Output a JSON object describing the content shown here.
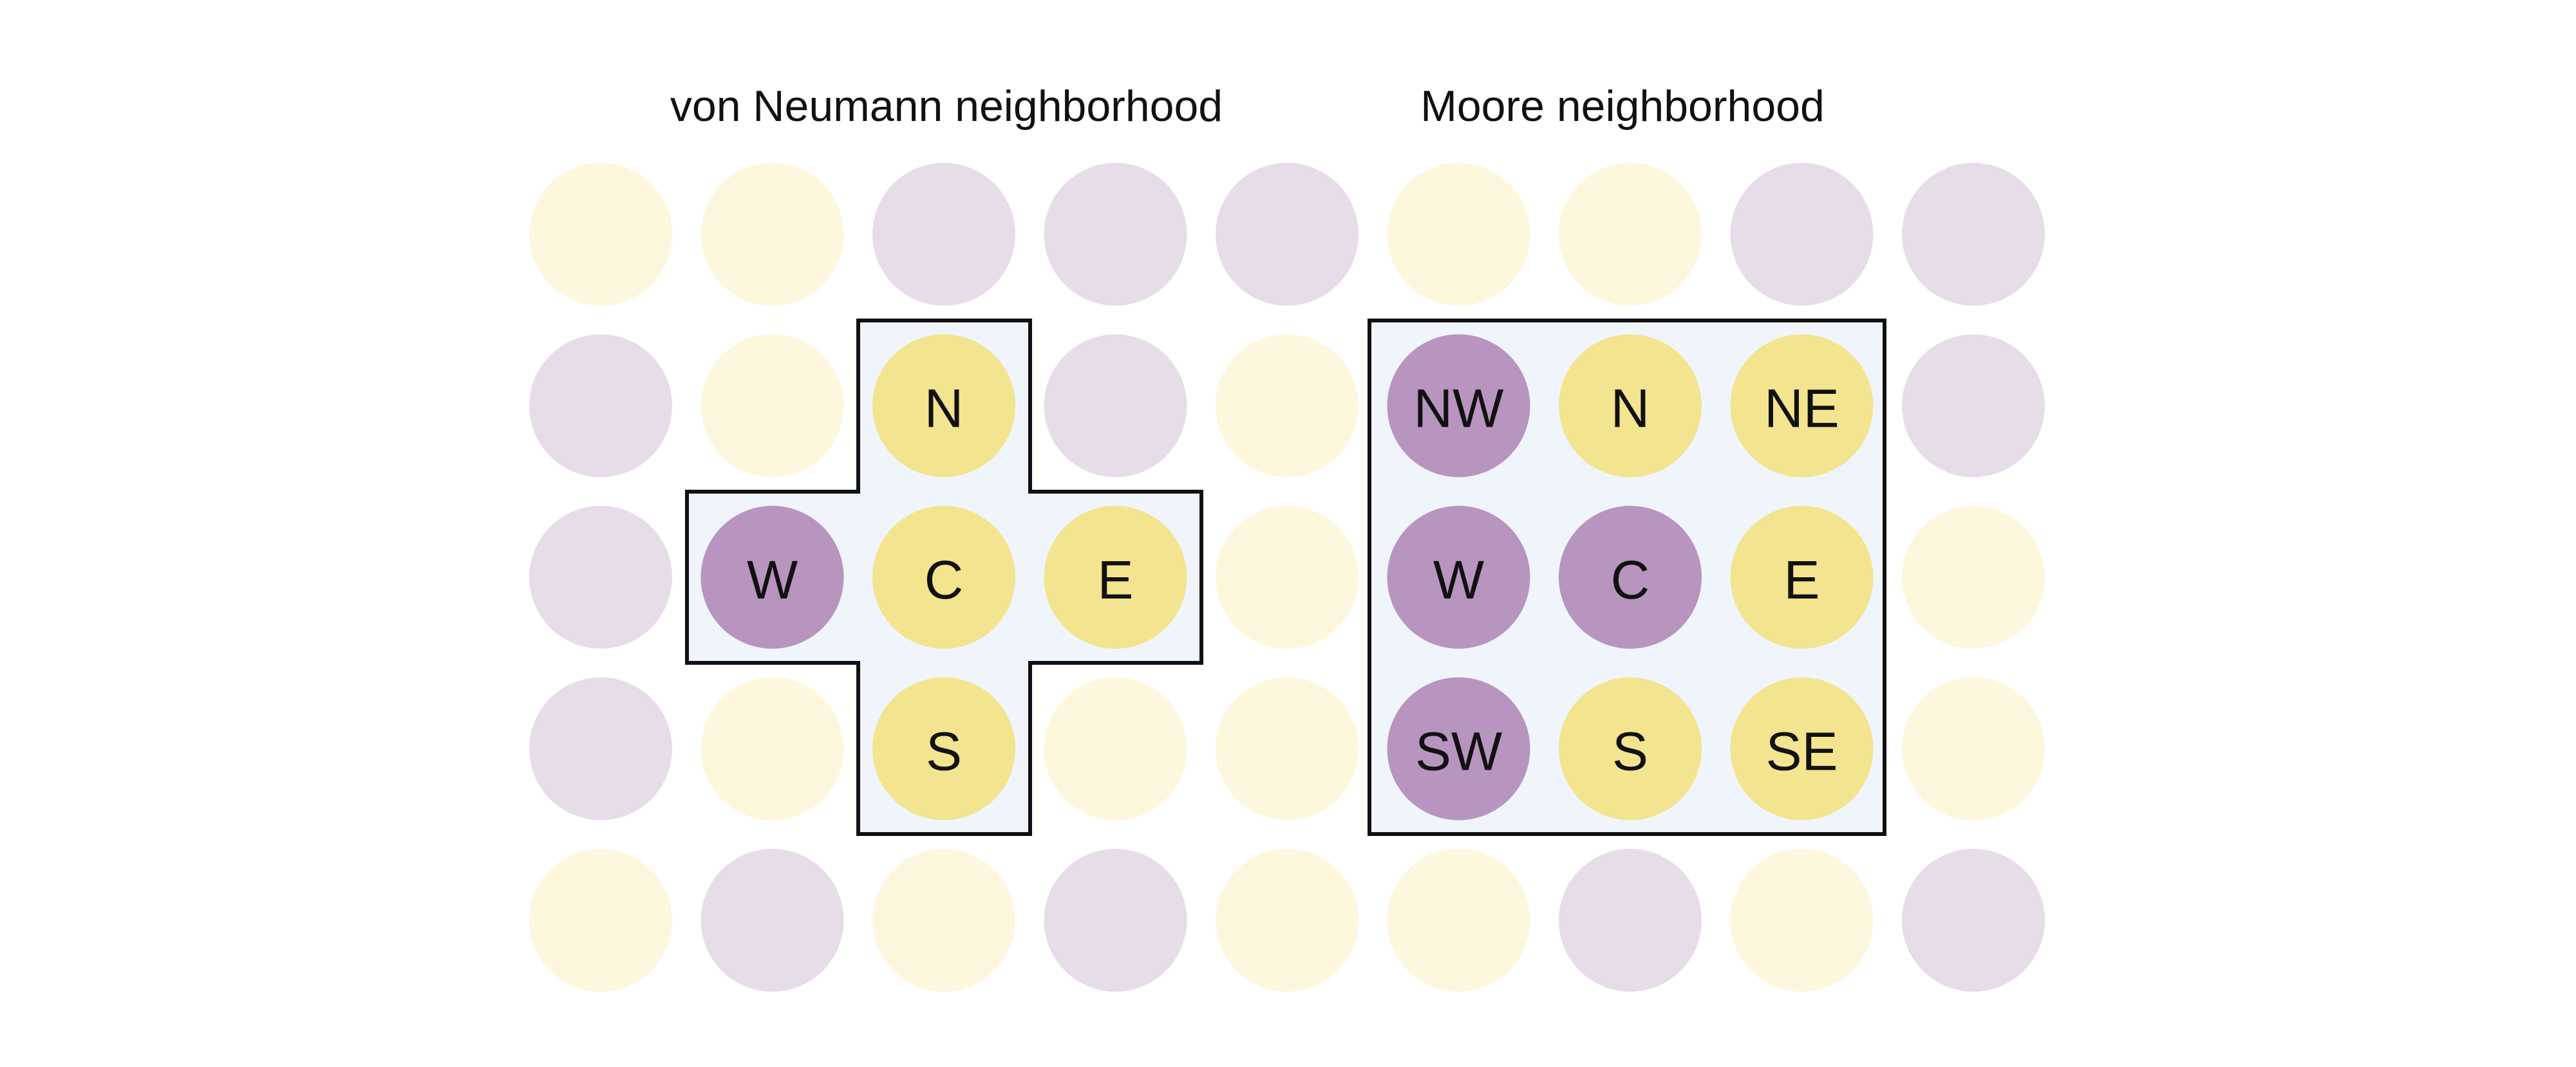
{
  "titles": {
    "von_neumann": "von Neumann neighborhood",
    "moore": "Moore neighborhood"
  },
  "colors": {
    "yellow": "#f3e48f",
    "purple": "#b795bf",
    "yellow_faded": "#fdf7de",
    "purple_faded": "#e6dde9",
    "highlight_fill": "#eff5fb",
    "outline": "#111111"
  },
  "grid": [
    [
      "yellow",
      "yellow",
      "purple",
      "purple",
      "purple",
      "yellow",
      "yellow",
      "purple",
      "purple"
    ],
    [
      "purple",
      "yellow",
      "yellow",
      "purple",
      "yellow",
      "purple",
      "yellow",
      "yellow",
      "purple"
    ],
    [
      "purple",
      "purple",
      "yellow",
      "yellow",
      "yellow",
      "purple",
      "purple",
      "yellow",
      "yellow"
    ],
    [
      "purple",
      "yellow",
      "yellow",
      "yellow",
      "yellow",
      "purple",
      "yellow",
      "yellow",
      "yellow"
    ],
    [
      "yellow",
      "purple",
      "yellow",
      "purple",
      "yellow",
      "yellow",
      "purple",
      "yellow",
      "purple"
    ]
  ],
  "von_neumann_cells": [
    {
      "row": 1,
      "col": 2,
      "label": "N"
    },
    {
      "row": 2,
      "col": 1,
      "label": "W"
    },
    {
      "row": 2,
      "col": 2,
      "label": "C"
    },
    {
      "row": 2,
      "col": 3,
      "label": "E"
    },
    {
      "row": 3,
      "col": 2,
      "label": "S"
    }
  ],
  "moore_cells": [
    {
      "row": 1,
      "col": 5,
      "label": "NW"
    },
    {
      "row": 1,
      "col": 6,
      "label": "N"
    },
    {
      "row": 1,
      "col": 7,
      "label": "NE"
    },
    {
      "row": 2,
      "col": 5,
      "label": "W"
    },
    {
      "row": 2,
      "col": 6,
      "label": "C"
    },
    {
      "row": 2,
      "col": 7,
      "label": "E"
    },
    {
      "row": 3,
      "col": 5,
      "label": "SW"
    },
    {
      "row": 3,
      "col": 6,
      "label": "S"
    },
    {
      "row": 3,
      "col": 7,
      "label": "SE"
    }
  ]
}
